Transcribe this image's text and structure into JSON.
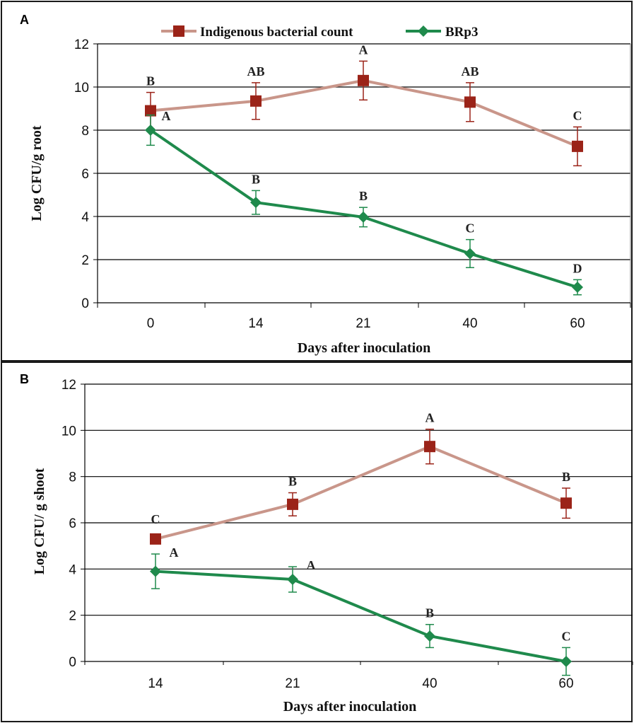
{
  "chart_data": [
    {
      "panel": "A",
      "type": "line",
      "categories": [
        "0",
        "14",
        "21",
        "40",
        "60"
      ],
      "xlabel": "Days after inoculation",
      "ylabel": "Log CFU/g root",
      "ylim": [
        0,
        12
      ],
      "yticks": [
        "0",
        "2",
        "4",
        "6",
        "8",
        "10",
        "12"
      ],
      "grid": "horizontal",
      "legend": "top",
      "series": [
        {
          "name": "Indigenous bacterial count",
          "marker": "square",
          "color": "#c9968a",
          "marker_color": "#9b2318",
          "values": [
            8.9,
            9.35,
            10.3,
            9.3,
            7.25
          ],
          "error": [
            0.85,
            0.85,
            0.9,
            0.9,
            0.9
          ],
          "letters": [
            "B",
            "AB",
            "A",
            "AB",
            "C"
          ]
        },
        {
          "name": "BRp3",
          "marker": "diamond",
          "color": "#1f8a4c",
          "marker_color": "#1f8a4c",
          "values": [
            8.0,
            4.65,
            3.97,
            2.28,
            0.72
          ],
          "error": [
            0.7,
            0.55,
            0.45,
            0.65,
            0.35
          ],
          "letters": [
            "A",
            "B",
            "B",
            "C",
            "D"
          ]
        }
      ]
    },
    {
      "panel": "B",
      "type": "line",
      "categories": [
        "14",
        "21",
        "40",
        "60"
      ],
      "xlabel": "Days after inoculation",
      "ylabel": "Log CFU/ g shoot",
      "ylim": [
        0,
        12
      ],
      "yticks": [
        "0",
        "2",
        "4",
        "6",
        "8",
        "10",
        "12"
      ],
      "grid": "horizontal",
      "series": [
        {
          "name": "Indigenous bacterial count",
          "marker": "square",
          "color": "#c9968a",
          "marker_color": "#9b2318",
          "values": [
            5.3,
            6.8,
            9.3,
            6.85
          ],
          "error": [
            0.0,
            0.5,
            0.75,
            0.65
          ],
          "letters": [
            "C",
            "B",
            "A",
            "B"
          ]
        },
        {
          "name": "BRp3",
          "marker": "diamond",
          "color": "#1f8a4c",
          "marker_color": "#1f8a4c",
          "values": [
            3.9,
            3.55,
            1.1,
            0.0
          ],
          "error": [
            0.75,
            0.55,
            0.5,
            0.6
          ],
          "letters": [
            "A",
            "A",
            "B",
            "C"
          ]
        }
      ]
    }
  ]
}
